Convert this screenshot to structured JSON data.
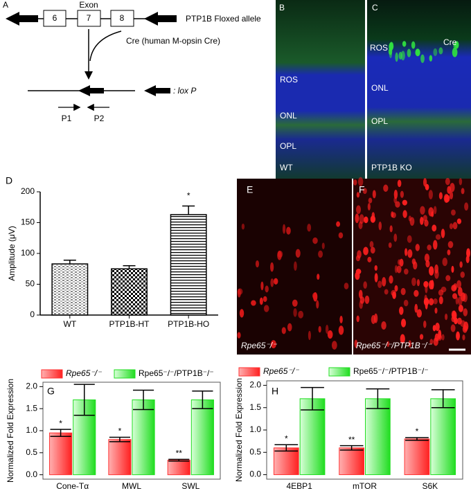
{
  "diagram": {
    "letter": "A",
    "exon": "Exon",
    "boxes": [
      "6",
      "7",
      "8"
    ],
    "allele": "PTP1B Floxed allele",
    "cre": "Cre (human M-opsin Cre)",
    "lox": ": lox P",
    "p1": "P1",
    "p2": "P2"
  },
  "images": {
    "B": {
      "letter": "B",
      "labels": [
        "ROS",
        "ONL",
        "OPL",
        "WT"
      ]
    },
    "C": {
      "letter": "C",
      "labels": [
        "ROS",
        "ONL",
        "OPL",
        "PTP1B KO",
        "Cre"
      ]
    },
    "E": {
      "letter": "E",
      "caption": "Rpe65⁻/⁻"
    },
    "F": {
      "letter": "F",
      "caption": "Rpe65⁻/⁻/PTP1B⁻/⁻"
    }
  },
  "chart_data": [
    {
      "type": "bar",
      "letter": "D",
      "ylabel": "Amplitude (μV)",
      "categories": [
        "WT",
        "PTP1B-HT",
        "PTP1B-HO"
      ],
      "values": [
        83,
        75,
        163
      ],
      "errors": [
        6,
        5,
        14
      ],
      "value_annotations": [
        null,
        null,
        "*"
      ],
      "error_direction": "up",
      "ylim": [
        0,
        200
      ],
      "yticks": [
        0,
        50,
        100,
        150,
        200
      ]
    },
    {
      "type": "grouped_bar",
      "letter": "G",
      "ylabel": "Normalized Fold Expression",
      "categories": [
        "Cone-Tα",
        "MWL",
        "SWL"
      ],
      "error_direction": "both",
      "series": [
        {
          "name": "Rpe65⁻/⁻",
          "color": "#ff3333",
          "values": [
            0.95,
            0.8,
            0.33
          ],
          "errors": [
            0.08,
            0.05,
            0.02
          ],
          "annotations": [
            "*",
            "*",
            "**"
          ]
        },
        {
          "name": "Rpe65⁻/⁻/PTP1B⁻/⁻",
          "color": "#22dd22",
          "values": [
            1.7,
            1.7,
            1.7
          ],
          "errors": [
            0.35,
            0.22,
            0.2
          ]
        }
      ],
      "ylim": [
        -0.1,
        2.1
      ],
      "yticks": [
        {
          "value": 0,
          "label": "0.0"
        },
        {
          "value": 0.5,
          "label": "0.5"
        },
        {
          "value": 1,
          "label": "1.0"
        },
        {
          "value": 1.5,
          "label": "1.5"
        },
        {
          "value": 2,
          "label": "2.0"
        }
      ]
    },
    {
      "type": "grouped_bar",
      "letter": "H",
      "ylabel": "Normalized Fold Expression",
      "categories": [
        "4EBP1",
        "mTOR",
        "S6K"
      ],
      "error_direction": "both",
      "series": [
        {
          "name": "Rpe65⁻/⁻",
          "color": "#ff3333",
          "values": [
            0.6,
            0.6,
            0.8
          ],
          "errors": [
            0.07,
            0.05,
            0.03
          ],
          "annotations": [
            "*",
            "**",
            "*"
          ]
        },
        {
          "name": "Rpe65⁻/⁻/PTP1B⁻/⁻",
          "color": "#22dd22",
          "values": [
            1.7,
            1.7,
            1.7
          ],
          "errors": [
            0.25,
            0.22,
            0.2
          ]
        }
      ],
      "ylim": [
        -0.1,
        2.1
      ],
      "yticks": [
        {
          "value": 0,
          "label": "0.0"
        },
        {
          "value": 0.5,
          "label": "0.5"
        },
        {
          "value": 1,
          "label": "1.0"
        },
        {
          "value": 1.5,
          "label": "1.5"
        },
        {
          "value": 2,
          "label": "2.0"
        }
      ]
    }
  ]
}
